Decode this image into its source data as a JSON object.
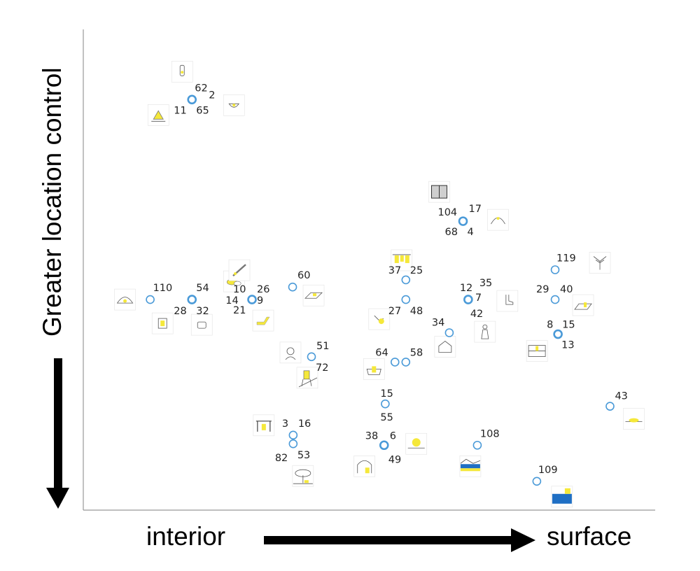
{
  "chart_data": {
    "type": "scatter",
    "ylabel": "Greater location control",
    "xlabel_left": "interior",
    "xlabel_right": "surface",
    "axis": {
      "x_lim": [
        0,
        100
      ],
      "y_lim": [
        0,
        100
      ],
      "ticks": false,
      "grid": false
    },
    "marker_color": "#4a9ad8",
    "icon_fill_color": "#f5e83a",
    "points": [
      {
        "x": 19.0,
        "y": 85.4,
        "labels": [
          "62",
          "2",
          "11",
          "65"
        ],
        "icons": [
          "bottle",
          "bowl",
          "iron"
        ]
      },
      {
        "x": 66.4,
        "y": 60.1,
        "labels": [
          "104",
          "17",
          "68",
          "4"
        ],
        "icons": [
          "book",
          "curve"
        ]
      },
      {
        "x": 82.5,
        "y": 50.0,
        "labels": [
          "119"
        ],
        "icons": [
          "tree"
        ]
      },
      {
        "x": 11.7,
        "y": 43.8,
        "labels": [
          "110"
        ],
        "icons": [
          "lamp"
        ]
      },
      {
        "x": 19.0,
        "y": 43.8,
        "labels": [
          "54",
          "28",
          "32",
          "14"
        ],
        "icons": [
          "bread",
          "frame",
          "cup"
        ]
      },
      {
        "x": 36.6,
        "y": 46.4,
        "labels": [
          "60"
        ],
        "icons": [
          "board"
        ]
      },
      {
        "x": 29.5,
        "y": 43.8,
        "labels": [
          "10",
          "26",
          "21",
          "9"
        ],
        "icons": [
          "knife",
          "shoe"
        ]
      },
      {
        "x": 56.4,
        "y": 47.9,
        "labels": [
          "37",
          "25"
        ],
        "icons": [
          "clothesline"
        ]
      },
      {
        "x": 56.4,
        "y": 43.8,
        "labels": [
          "27",
          "48"
        ],
        "icons": [
          "flower"
        ]
      },
      {
        "x": 67.3,
        "y": 43.8,
        "labels": [
          "12",
          "35",
          "7",
          "42"
        ],
        "icons": [
          "boot",
          "woman"
        ]
      },
      {
        "x": 82.5,
        "y": 43.8,
        "labels": [
          "29",
          "40"
        ],
        "icons": [
          "rug"
        ]
      },
      {
        "x": 83.0,
        "y": 36.6,
        "labels": [
          "8",
          "15",
          "13"
        ],
        "icons": [
          "shelf"
        ]
      },
      {
        "x": 64.0,
        "y": 36.9,
        "labels": [
          "34"
        ],
        "icons": [
          "house"
        ]
      },
      {
        "x": 39.9,
        "y": 31.9,
        "labels": [
          "51",
          "72"
        ],
        "icons": [
          "portrait",
          "chair"
        ]
      },
      {
        "x": 54.5,
        "y": 30.8,
        "labels": [
          "64"
        ],
        "icons": [
          "bath"
        ]
      },
      {
        "x": 56.4,
        "y": 30.8,
        "labels": [
          "58"
        ],
        "icons": []
      },
      {
        "x": 52.8,
        "y": 22.1,
        "labels": [
          "15",
          "55"
        ],
        "icons": []
      },
      {
        "x": 92.1,
        "y": 21.6,
        "labels": [
          "43"
        ],
        "icons": [
          "beach"
        ]
      },
      {
        "x": 36.7,
        "y": 15.6,
        "labels": [
          "3",
          "16"
        ],
        "icons": [
          "table"
        ]
      },
      {
        "x": 36.7,
        "y": 13.8,
        "labels": [
          "82",
          "53"
        ],
        "icons": [
          "tree-ground"
        ]
      },
      {
        "x": 52.6,
        "y": 13.5,
        "labels": [
          "38",
          "6",
          "49"
        ],
        "icons": [
          "sun",
          "arch"
        ]
      },
      {
        "x": 68.9,
        "y": 13.5,
        "labels": [
          "108"
        ],
        "icons": [
          "landscape"
        ]
      },
      {
        "x": 79.3,
        "y": 6.0,
        "labels": [
          "109"
        ],
        "icons": [
          "sea"
        ]
      }
    ]
  }
}
